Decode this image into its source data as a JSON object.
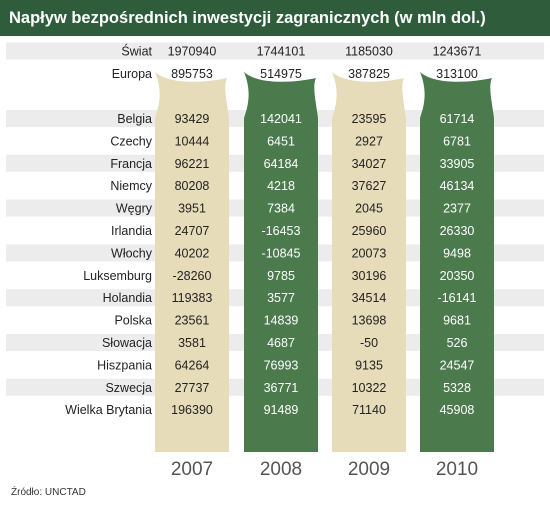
{
  "title": "Napływ bezpośrednich inwestycji zagranicznych (w mln dol.)",
  "source": "Źródło: UNCTAD",
  "colors": {
    "title_bg": "#2f5d3c",
    "beige": "#e7dcba",
    "green": "#4b7a4d",
    "stripe": "#ececec",
    "text_dark": "#222222",
    "text_light": "#ffffff",
    "year_color": "#555555"
  },
  "chart_data": {
    "type": "table",
    "title": "Napływ bezpośrednich inwestycji zagranicznych (w mln dol.)",
    "columns": [
      "2007",
      "2008",
      "2009",
      "2010"
    ],
    "summary_rows": [
      {
        "name": "Świat",
        "values": [
          1970940,
          1744101,
          1185030,
          1243671
        ]
      },
      {
        "name": "Europa",
        "values": [
          895753,
          514975,
          387825,
          313100
        ]
      }
    ],
    "rows": [
      {
        "name": "Belgia",
        "values": [
          93429,
          142041,
          23595,
          61714
        ]
      },
      {
        "name": "Czechy",
        "values": [
          10444,
          6451,
          2927,
          6781
        ]
      },
      {
        "name": "Francja",
        "values": [
          96221,
          64184,
          34027,
          33905
        ]
      },
      {
        "name": "Niemcy",
        "values": [
          80208,
          4218,
          37627,
          46134
        ]
      },
      {
        "name": "Węgry",
        "values": [
          3951,
          7384,
          2045,
          2377
        ]
      },
      {
        "name": "Irlandia",
        "values": [
          24707,
          -16453,
          25960,
          26330
        ]
      },
      {
        "name": "Włochy",
        "values": [
          40202,
          -10845,
          20073,
          9498
        ]
      },
      {
        "name": "Luksemburg",
        "values": [
          -28260,
          9785,
          30196,
          20350
        ]
      },
      {
        "name": "Holandia",
        "values": [
          119383,
          3577,
          34514,
          -16141
        ]
      },
      {
        "name": "Polska",
        "values": [
          23561,
          14839,
          13698,
          9681
        ]
      },
      {
        "name": "Słowacja",
        "values": [
          3581,
          4687,
          -50,
          526
        ]
      },
      {
        "name": "Hiszpania",
        "values": [
          64264,
          76993,
          9135,
          24547
        ]
      },
      {
        "name": "Szwecja",
        "values": [
          27737,
          36771,
          10322,
          5328
        ]
      },
      {
        "name": "Wielka Brytania",
        "values": [
          196390,
          91489,
          71140,
          45908
        ]
      }
    ]
  }
}
